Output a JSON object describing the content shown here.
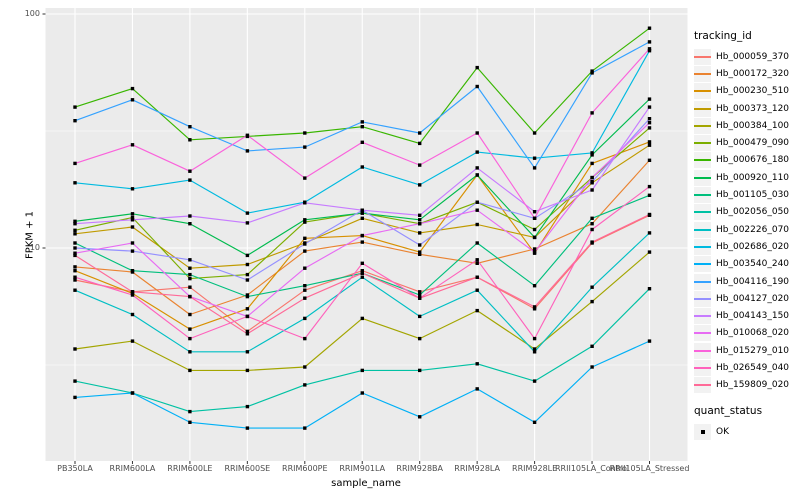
{
  "chart_data": {
    "type": "line",
    "title": "",
    "xlabel": "sample_name",
    "ylabel": "FPKM + 1",
    "y_scale": "log10",
    "ylim": [
      1.23,
      106
    ],
    "y_ticks": [
      100,
      10
    ],
    "y_minor_ticks": [
      31.62,
      3.162
    ],
    "grid": true,
    "panel_bg": "#EBEBEB",
    "grid_color": "#FFFFFF",
    "point_color": "#000000",
    "point_shape": "square",
    "legend_position": "right",
    "categories": [
      "PB350LA",
      "RRIM600LA",
      "RRIM600LE",
      "RRIM600SE",
      "RRIM600PE",
      "RRIM901LA",
      "RRIM928BA",
      "RRIM928LA",
      "RRIM928LE",
      "RRII105LA_Control",
      "RRII105LA_Stressed"
    ],
    "series": [
      {
        "name": "Hb_000059_370",
        "color": "#F8766D",
        "values": [
          7.3,
          6.5,
          6.8,
          4.4,
          6.6,
          8.0,
          6.5,
          7.5,
          5.5,
          10.5,
          13.8
        ]
      },
      {
        "name": "Hb_000172_320",
        "color": "#EA8331",
        "values": [
          8.3,
          7.9,
          5.2,
          6.3,
          9.7,
          10.6,
          9.4,
          8.6,
          9.9,
          12.7,
          23.7
        ]
      },
      {
        "name": "Hb_000230_510",
        "color": "#D89000",
        "values": [
          8.0,
          6.4,
          4.5,
          5.5,
          11.0,
          11.3,
          9.6,
          20.5,
          9.5,
          23.0,
          28.4
        ]
      },
      {
        "name": "Hb_000373_120",
        "color": "#C09B00",
        "values": [
          11.5,
          12.3,
          8.2,
          8.5,
          10.5,
          13.4,
          11.6,
          12.6,
          11.1,
          19.0,
          27.5
        ]
      },
      {
        "name": "Hb_000384_100",
        "color": "#A3A500",
        "values": [
          3.7,
          4.0,
          3.0,
          3.0,
          3.1,
          5.0,
          4.1,
          5.4,
          3.7,
          5.9,
          9.6
        ]
      },
      {
        "name": "Hb_000479_090",
        "color": "#7CAE00",
        "values": [
          11.9,
          13.5,
          7.4,
          7.7,
          12.9,
          14.1,
          12.7,
          15.7,
          12.0,
          20.0,
          32.6
        ]
      },
      {
        "name": "Hb_000676_180",
        "color": "#39B600",
        "values": [
          40,
          48,
          29,
          30,
          31,
          33,
          28,
          59,
          31,
          57,
          87
        ]
      },
      {
        "name": "Hb_000920_110",
        "color": "#00BB4E",
        "values": [
          13.0,
          14.0,
          12.7,
          9.3,
          13.2,
          14.1,
          13.2,
          20.5,
          11.1,
          25.0,
          43.3
        ]
      },
      {
        "name": "Hb_001105_030",
        "color": "#00BF7D",
        "values": [
          10.5,
          8.0,
          7.7,
          6.2,
          6.9,
          7.8,
          6.3,
          10.5,
          6.9,
          13.4,
          16.8
        ]
      },
      {
        "name": "Hb_002056_050",
        "color": "#00C1A3",
        "values": [
          2.7,
          2.4,
          2.0,
          2.1,
          2.6,
          3.0,
          3.0,
          3.2,
          2.7,
          3.8,
          6.7
        ]
      },
      {
        "name": "Hb_002226_070",
        "color": "#00BFC4",
        "values": [
          6.6,
          5.2,
          3.6,
          3.6,
          5.0,
          7.5,
          5.1,
          6.6,
          3.6,
          6.8,
          11.6
        ]
      },
      {
        "name": "Hb_002686_020",
        "color": "#00BAE0",
        "values": [
          19.0,
          17.9,
          19.5,
          14.1,
          15.7,
          22.2,
          18.6,
          25.7,
          24.2,
          25.5,
          69.7
        ]
      },
      {
        "name": "Hb_003540_240",
        "color": "#00B0F6",
        "values": [
          2.3,
          2.4,
          1.8,
          1.7,
          1.7,
          2.4,
          1.9,
          2.5,
          1.8,
          3.1,
          4.0
        ]
      },
      {
        "name": "Hb_004116_190",
        "color": "#35A2FF",
        "values": [
          35,
          43,
          33,
          26,
          27,
          34.6,
          31,
          49,
          22,
          56,
          76
        ]
      },
      {
        "name": "Hb_004127_020",
        "color": "#9590FF",
        "values": [
          10.0,
          9.7,
          8.9,
          7.3,
          10.4,
          14.5,
          10.3,
          15.7,
          13.4,
          19.2,
          35.7
        ]
      },
      {
        "name": "Hb_004143_150",
        "color": "#C77CFF",
        "values": [
          12.7,
          13.2,
          13.7,
          12.8,
          15.6,
          14.5,
          13.8,
          22.0,
          14.3,
          17.7,
          40.0
        ]
      },
      {
        "name": "Hb_010068_020",
        "color": "#E76BF3",
        "values": [
          9.5,
          10.5,
          6.2,
          5.1,
          8.2,
          11.3,
          12.7,
          14.5,
          9.6,
          20.0,
          34.3
        ]
      },
      {
        "name": "Hb_015279_010",
        "color": "#FA62DB",
        "values": [
          23.0,
          27.6,
          21.3,
          30.3,
          19.9,
          28.3,
          22.6,
          31.0,
          13.4,
          37.8,
          71.0
        ]
      },
      {
        "name": "Hb_026549_040",
        "color": "#FF62BC",
        "values": [
          7.5,
          6.3,
          4.1,
          5.1,
          4.1,
          8.6,
          6.1,
          8.9,
          4.1,
          12.0,
          18.3
        ]
      },
      {
        "name": "Hb_159809_020",
        "color": "#FF6A98",
        "values": [
          9.3,
          6.5,
          6.2,
          4.3,
          6.1,
          7.8,
          6.1,
          7.5,
          5.6,
          10.6,
          13.9
        ]
      }
    ],
    "legend": {
      "tracking_title": "tracking_id",
      "quant_title": "quant_status",
      "quant_items": [
        {
          "label": "OK",
          "marker": "black-square"
        }
      ]
    }
  }
}
